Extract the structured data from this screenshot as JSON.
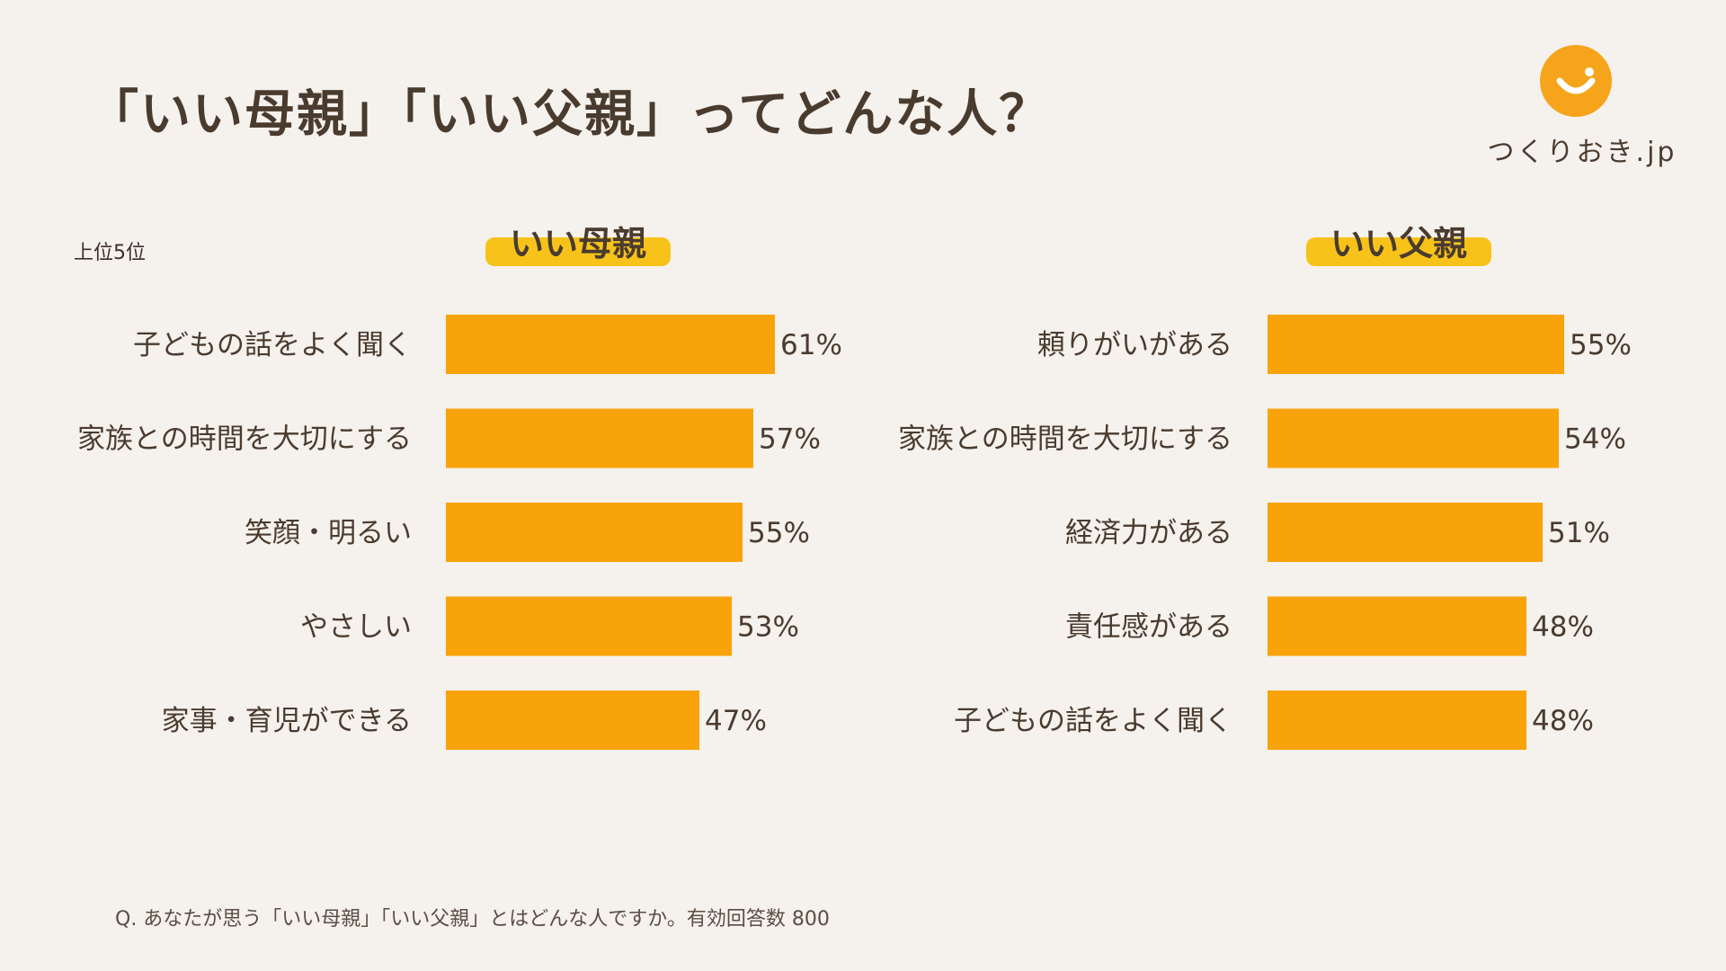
{
  "title": "「いい母親」「いい父親」ってどんな人？",
  "logo": {
    "text": "つくりおき.jp",
    "icon": "smile-icon",
    "color": "#f5a41b"
  },
  "rank_label": "上位5位",
  "footnote": "Q. あなたが思う「いい母親」「いい父親」とはどんな人ですか。有効回答数 800",
  "colors": {
    "bar": "#f9a30a",
    "highlight": "#f7c31b",
    "text": "#4a3b2f",
    "background": "#f5f1ec"
  },
  "chart_data": [
    {
      "type": "bar",
      "orientation": "horizontal",
      "title": "いい母親",
      "categories": [
        "子どもの話をよく聞く",
        "家族との時間を大切にする",
        "笑顔・明るい",
        "やさしい",
        "家事・育児ができる"
      ],
      "values": [
        61,
        57,
        55,
        53,
        47
      ],
      "value_labels": [
        "61%",
        "57%",
        "55%",
        "53%",
        "47%"
      ],
      "unit": "%",
      "grid": false
    },
    {
      "type": "bar",
      "orientation": "horizontal",
      "title": "いい父親",
      "categories": [
        "頼りがいがある",
        "家族との時間を大切にする",
        "経済力がある",
        "責任感がある",
        "子どもの話をよく聞く"
      ],
      "values": [
        55,
        54,
        51,
        48,
        48
      ],
      "value_labels": [
        "55%",
        "54%",
        "51%",
        "48%",
        "48%"
      ],
      "unit": "%",
      "grid": false
    }
  ]
}
